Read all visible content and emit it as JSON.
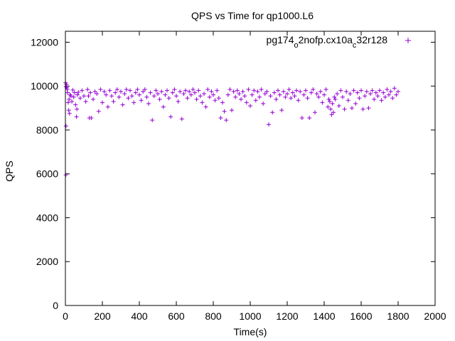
{
  "chart_data": {
    "type": "scatter",
    "title": "QPS vs Time for qp1000.L6",
    "xlabel": "Time(s)",
    "ylabel": "QPS",
    "xlim": [
      0,
      2000
    ],
    "ylim": [
      0,
      12500
    ],
    "x_ticks": [
      "0",
      "200",
      "400",
      "600",
      "800",
      "1000",
      "1200",
      "1400",
      "1600",
      "1800",
      "2000"
    ],
    "y_ticks": [
      "0",
      "2000",
      "4000",
      "6000",
      "8000",
      "10000",
      "12000"
    ],
    "grid": false,
    "legend_position": "top-right",
    "marker": "+",
    "series": [
      {
        "name": "pg174_o2nofp.cx10a_c32r128",
        "legend_parts": [
          {
            "text": "pg174",
            "sub": false
          },
          {
            "text": "o",
            "sub": true
          },
          {
            "text": "2nofp.cx10a",
            "sub": false
          },
          {
            "text": "c",
            "sub": true
          },
          {
            "text": "32r128",
            "sub": false
          }
        ],
        "color": "#9400d3",
        "points": [
          [
            1,
            10150
          ],
          [
            2,
            5950
          ],
          [
            3,
            8180
          ],
          [
            4,
            9980
          ],
          [
            6,
            10080
          ],
          [
            8,
            9920
          ],
          [
            10,
            9850
          ],
          [
            12,
            9700
          ],
          [
            15,
            9250
          ],
          [
            18,
            8900
          ],
          [
            20,
            9400
          ],
          [
            22,
            8750
          ],
          [
            25,
            9600
          ],
          [
            30,
            9550
          ],
          [
            35,
            9300
          ],
          [
            40,
            9820
          ],
          [
            45,
            9500
          ],
          [
            50,
            9700
          ],
          [
            55,
            9150
          ],
          [
            60,
            8600
          ],
          [
            62,
            8950
          ],
          [
            65,
            9600
          ],
          [
            70,
            9720
          ],
          [
            80,
            9450
          ],
          [
            90,
            9800
          ],
          [
            100,
            9550
          ],
          [
            110,
            9300
          ],
          [
            120,
            9850
          ],
          [
            125,
            9550
          ],
          [
            130,
            8550
          ],
          [
            135,
            9700
          ],
          [
            140,
            8550
          ],
          [
            150,
            9400
          ],
          [
            160,
            9750
          ],
          [
            170,
            9650
          ],
          [
            180,
            8850
          ],
          [
            190,
            9850
          ],
          [
            200,
            9250
          ],
          [
            210,
            9750
          ],
          [
            220,
            9600
          ],
          [
            230,
            9050
          ],
          [
            240,
            9800
          ],
          [
            250,
            9550
          ],
          [
            260,
            9300
          ],
          [
            270,
            9700
          ],
          [
            280,
            9850
          ],
          [
            290,
            9500
          ],
          [
            300,
            9750
          ],
          [
            310,
            9150
          ],
          [
            320,
            9650
          ],
          [
            330,
            9850
          ],
          [
            340,
            9450
          ],
          [
            350,
            9800
          ],
          [
            360,
            9550
          ],
          [
            370,
            9250
          ],
          [
            380,
            9700
          ],
          [
            390,
            9850
          ],
          [
            400,
            9600
          ],
          [
            410,
            9350
          ],
          [
            420,
            9750
          ],
          [
            430,
            9850
          ],
          [
            440,
            9500
          ],
          [
            450,
            9200
          ],
          [
            460,
            9700
          ],
          [
            470,
            8450
          ],
          [
            480,
            9550
          ],
          [
            490,
            9800
          ],
          [
            500,
            9650
          ],
          [
            510,
            9400
          ],
          [
            520,
            9750
          ],
          [
            530,
            9050
          ],
          [
            540,
            9600
          ],
          [
            550,
            9800
          ],
          [
            560,
            9450
          ],
          [
            570,
            8600
          ],
          [
            580,
            9700
          ],
          [
            590,
            9850
          ],
          [
            600,
            9550
          ],
          [
            610,
            9300
          ],
          [
            620,
            9750
          ],
          [
            630,
            8500
          ],
          [
            640,
            9650
          ],
          [
            650,
            9800
          ],
          [
            660,
            9450
          ],
          [
            670,
            9750
          ],
          [
            680,
            9600
          ],
          [
            690,
            9850
          ],
          [
            700,
            9700
          ],
          [
            710,
            9400
          ],
          [
            720,
            9800
          ],
          [
            730,
            9550
          ],
          [
            740,
            9250
          ],
          [
            750,
            9650
          ],
          [
            760,
            9050
          ],
          [
            770,
            9850
          ],
          [
            780,
            9500
          ],
          [
            790,
            9750
          ],
          [
            800,
            9600
          ],
          [
            810,
            9350
          ],
          [
            820,
            9800
          ],
          [
            830,
            9450
          ],
          [
            840,
            8550
          ],
          [
            850,
            9250
          ],
          [
            860,
            8850
          ],
          [
            870,
            8450
          ],
          [
            880,
            9600
          ],
          [
            890,
            9850
          ],
          [
            900,
            8900
          ],
          [
            910,
            9750
          ],
          [
            920,
            9500
          ],
          [
            930,
            9800
          ],
          [
            940,
            9650
          ],
          [
            950,
            9400
          ],
          [
            960,
            9750
          ],
          [
            970,
            9550
          ],
          [
            980,
            9250
          ],
          [
            990,
            9850
          ],
          [
            1000,
            9100
          ],
          [
            1010,
            9600
          ],
          [
            1020,
            9800
          ],
          [
            1030,
            9350
          ],
          [
            1040,
            9750
          ],
          [
            1050,
            9500
          ],
          [
            1060,
            9850
          ],
          [
            1070,
            9200
          ],
          [
            1080,
            9650
          ],
          [
            1090,
            9750
          ],
          [
            1100,
            8250
          ],
          [
            1110,
            9550
          ],
          [
            1120,
            8800
          ],
          [
            1130,
            9700
          ],
          [
            1140,
            9400
          ],
          [
            1150,
            9800
          ],
          [
            1160,
            9600
          ],
          [
            1170,
            8900
          ],
          [
            1180,
            9750
          ],
          [
            1190,
            9500
          ],
          [
            1200,
            9650
          ],
          [
            1210,
            9850
          ],
          [
            1220,
            9450
          ],
          [
            1230,
            9700
          ],
          [
            1240,
            9550
          ],
          [
            1250,
            9800
          ],
          [
            1260,
            9350
          ],
          [
            1270,
            9750
          ],
          [
            1280,
            8550
          ],
          [
            1290,
            9600
          ],
          [
            1300,
            9800
          ],
          [
            1310,
            9450
          ],
          [
            1320,
            8550
          ],
          [
            1330,
            9700
          ],
          [
            1340,
            9850
          ],
          [
            1350,
            8800
          ],
          [
            1360,
            9650
          ],
          [
            1370,
            9500
          ],
          [
            1380,
            9750
          ],
          [
            1390,
            9250
          ],
          [
            1400,
            9600
          ],
          [
            1410,
            9850
          ],
          [
            1420,
            9050
          ],
          [
            1425,
            9400
          ],
          [
            1430,
            9300
          ],
          [
            1435,
            8950
          ],
          [
            1440,
            8700
          ],
          [
            1445,
            9200
          ],
          [
            1450,
            8800
          ],
          [
            1455,
            9500
          ],
          [
            1460,
            9400
          ],
          [
            1470,
            9650
          ],
          [
            1480,
            9100
          ],
          [
            1490,
            9800
          ],
          [
            1500,
            9500
          ],
          [
            1510,
            8950
          ],
          [
            1520,
            9750
          ],
          [
            1530,
            9350
          ],
          [
            1540,
            9650
          ],
          [
            1550,
            9000
          ],
          [
            1560,
            9800
          ],
          [
            1570,
            9200
          ],
          [
            1580,
            9700
          ],
          [
            1590,
            9450
          ],
          [
            1600,
            9800
          ],
          [
            1610,
            8950
          ],
          [
            1620,
            9550
          ],
          [
            1630,
            9750
          ],
          [
            1640,
            9000
          ],
          [
            1650,
            9650
          ],
          [
            1660,
            9800
          ],
          [
            1670,
            9400
          ],
          [
            1680,
            9700
          ],
          [
            1690,
            9550
          ],
          [
            1700,
            9800
          ],
          [
            1710,
            9350
          ],
          [
            1720,
            9700
          ],
          [
            1730,
            9500
          ],
          [
            1740,
            9850
          ],
          [
            1750,
            9600
          ],
          [
            1760,
            9750
          ],
          [
            1770,
            9450
          ],
          [
            1780,
            9900
          ],
          [
            1790,
            9600
          ],
          [
            1800,
            9750
          ]
        ]
      }
    ]
  }
}
